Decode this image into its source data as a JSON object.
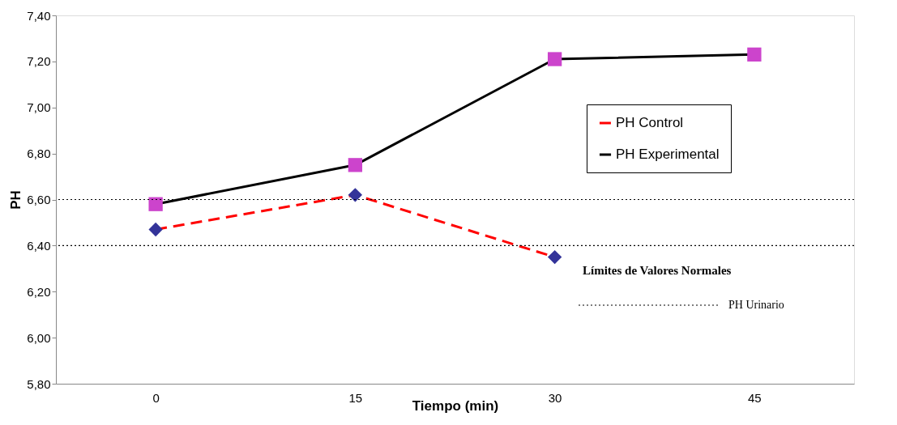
{
  "chart_data": {
    "type": "line",
    "xlabel": "Tiempo (min)",
    "ylabel": "PH",
    "categories": [
      "0",
      "15",
      "30",
      "45"
    ],
    "series": [
      {
        "name": "PH Control",
        "color": "#ff0000",
        "values": [
          6.47,
          6.62,
          6.35,
          null
        ],
        "marker": "diamond",
        "colors": [
          "#333399",
          "#333399",
          "#333399",
          "#333399"
        ],
        "line_style": "dashed"
      },
      {
        "name": "PH Experimental",
        "color": "#000000",
        "values": [
          6.58,
          6.75,
          7.21,
          7.23
        ],
        "marker": "square",
        "colors": [
          "#cc44cc",
          "#cc44cc",
          "#cc44cc",
          "#cc44cc"
        ],
        "line_style": "solid"
      }
    ],
    "ylim": [
      5.8,
      7.4
    ],
    "yticks": [
      {
        "value": 5.8,
        "label": "5,80"
      },
      {
        "value": 6.0,
        "label": "6,00"
      },
      {
        "value": 6.2,
        "label": "6,20"
      },
      {
        "value": 6.4,
        "label": "6,40"
      },
      {
        "value": 6.6,
        "label": "6,60"
      },
      {
        "value": 6.8,
        "label": "6,80"
      },
      {
        "value": 7.0,
        "label": "7,00"
      },
      {
        "value": 7.2,
        "label": "7,20"
      },
      {
        "value": 7.4,
        "label": "7,40"
      }
    ],
    "ref_lines": [
      {
        "axis": "y",
        "value": 6.6,
        "color": "#000000",
        "line_style": "dotted"
      },
      {
        "axis": "y",
        "value": 6.4,
        "color": "#000000",
        "line_style": "dotted"
      }
    ],
    "annotations": [
      "Límites de Valores Normales",
      "PH Urinario"
    ],
    "grid": false,
    "legend": "right"
  }
}
